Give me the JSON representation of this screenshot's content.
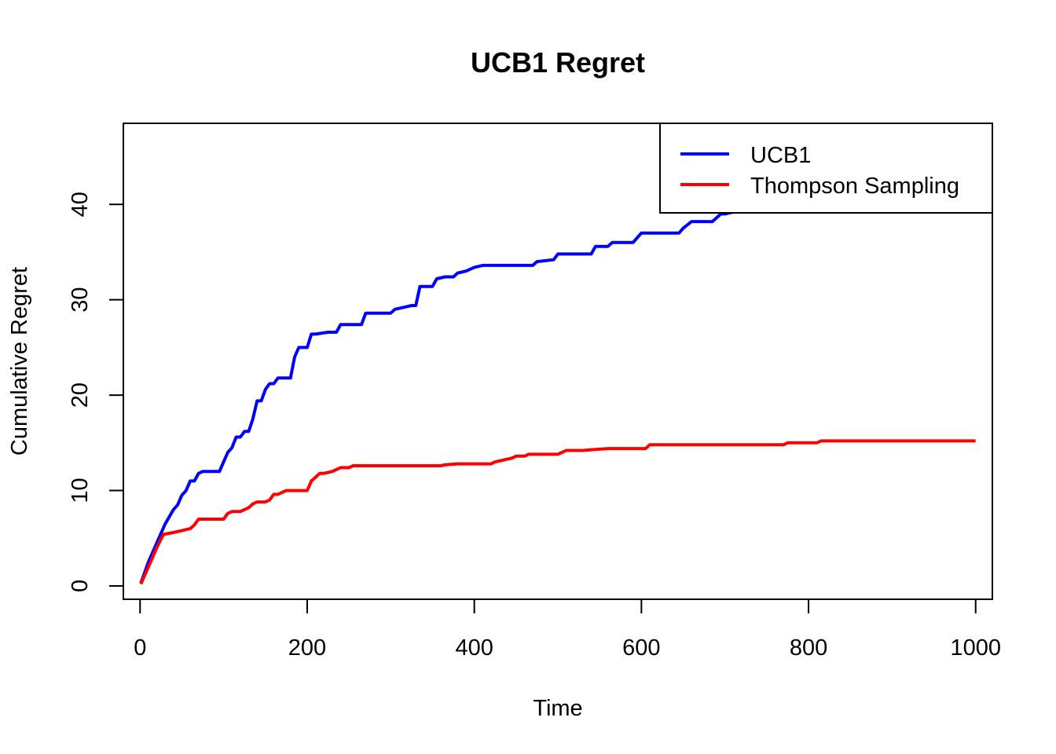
{
  "chart_data": {
    "type": "line",
    "title": "UCB1 Regret",
    "xlabel": "Time",
    "ylabel": "Cumulative Regret",
    "xlim": [
      -20,
      1020
    ],
    "ylim": [
      -1.4,
      48.5
    ],
    "xticks": [
      0,
      200,
      400,
      600,
      800,
      1000
    ],
    "yticks": [
      0,
      10,
      20,
      30,
      40
    ],
    "grid": false,
    "legend_position": "top-right",
    "series": [
      {
        "name": "UCB1",
        "color": "#0000FF",
        "x": [
          1,
          10,
          20,
          30,
          40,
          45,
          50,
          55,
          60,
          65,
          70,
          75,
          80,
          95,
          100,
          105,
          110,
          115,
          120,
          125,
          130,
          135,
          140,
          145,
          150,
          155,
          160,
          165,
          170,
          180,
          185,
          190,
          200,
          205,
          210,
          225,
          235,
          240,
          265,
          270,
          290,
          300,
          305,
          315,
          325,
          330,
          335,
          350,
          355,
          365,
          375,
          380,
          390,
          395,
          400,
          410,
          470,
          475,
          495,
          500,
          510,
          540,
          545,
          560,
          565,
          590,
          595,
          600,
          630,
          645,
          650,
          660,
          685,
          690,
          695,
          700,
          710,
          730,
          760,
          800,
          850,
          900,
          950,
          1000
        ],
        "y": [
          0.3,
          2.5,
          4.5,
          6.5,
          8.0,
          8.5,
          9.5,
          10.0,
          11.0,
          11.0,
          11.8,
          12.0,
          12.0,
          12.0,
          13.0,
          14.0,
          14.5,
          15.6,
          15.6,
          16.2,
          16.2,
          17.5,
          19.4,
          19.4,
          20.6,
          21.2,
          21.2,
          21.8,
          21.8,
          21.8,
          24.0,
          25.0,
          25.0,
          26.4,
          26.4,
          26.6,
          26.6,
          27.4,
          27.4,
          28.6,
          28.6,
          28.6,
          29.0,
          29.2,
          29.4,
          29.4,
          31.4,
          31.4,
          32.2,
          32.4,
          32.4,
          32.8,
          33.0,
          33.2,
          33.4,
          33.6,
          33.6,
          34.0,
          34.2,
          34.8,
          34.8,
          34.8,
          35.6,
          35.6,
          36.0,
          36.0,
          36.5,
          37.0,
          37.0,
          37.0,
          37.5,
          38.2,
          38.2,
          38.6,
          39.0,
          39.0,
          39.2,
          39.5,
          40.0,
          40.5,
          41.0,
          41.5,
          42.0,
          42.3
        ]
      },
      {
        "name": "Thompson Sampling",
        "color": "#FF0000",
        "x": [
          1,
          10,
          20,
          28,
          40,
          50,
          60,
          65,
          70,
          75,
          100,
          105,
          110,
          120,
          125,
          130,
          135,
          140,
          150,
          155,
          160,
          165,
          175,
          180,
          200,
          205,
          210,
          215,
          220,
          230,
          235,
          240,
          250,
          255,
          300,
          360,
          365,
          380,
          420,
          425,
          435,
          445,
          450,
          460,
          465,
          470,
          500,
          505,
          510,
          530,
          560,
          580,
          605,
          610,
          650,
          700,
          770,
          775,
          810,
          815,
          850,
          900,
          1000
        ],
        "y": [
          0.2,
          2.0,
          4.0,
          5.4,
          5.6,
          5.8,
          6.0,
          6.4,
          7.0,
          7.0,
          7.0,
          7.6,
          7.8,
          7.8,
          8.0,
          8.2,
          8.6,
          8.8,
          8.8,
          9.0,
          9.6,
          9.6,
          10.0,
          10.0,
          10.0,
          11.0,
          11.4,
          11.8,
          11.8,
          12.0,
          12.2,
          12.4,
          12.4,
          12.6,
          12.6,
          12.6,
          12.7,
          12.8,
          12.8,
          13.0,
          13.2,
          13.4,
          13.6,
          13.6,
          13.8,
          13.8,
          13.8,
          14.0,
          14.2,
          14.2,
          14.4,
          14.4,
          14.4,
          14.8,
          14.8,
          14.8,
          14.8,
          15.0,
          15.0,
          15.2,
          15.2,
          15.2,
          15.2
        ]
      }
    ]
  }
}
